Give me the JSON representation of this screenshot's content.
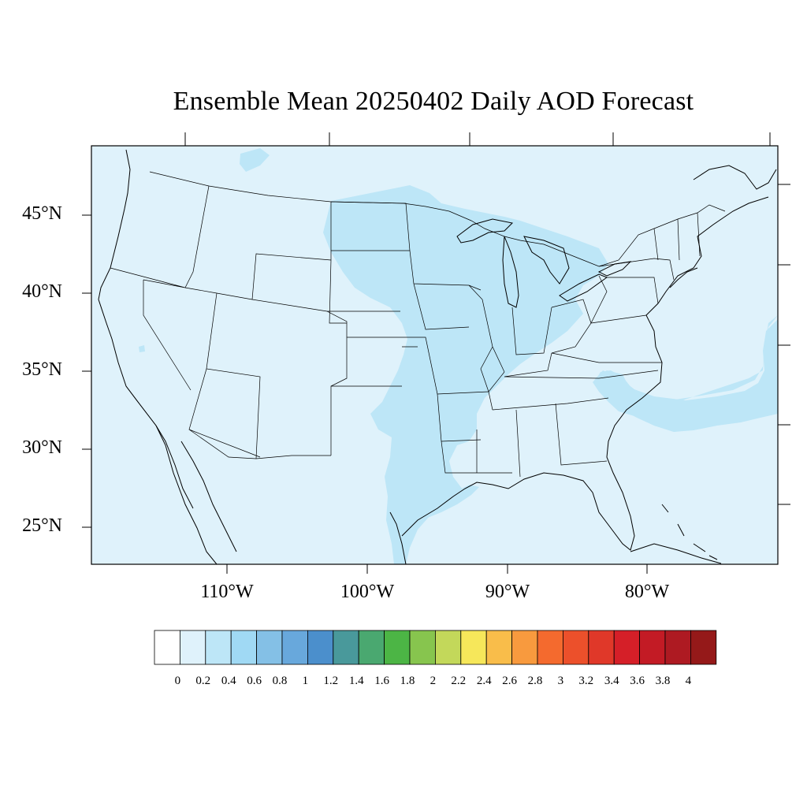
{
  "title": "Ensemble Mean 20250402 Daily AOD Forecast",
  "lat_labels": [
    "45°N",
    "40°N",
    "35°N",
    "30°N",
    "25°N"
  ],
  "lon_labels": [
    "110°W",
    "100°W",
    "90°W",
    "80°W"
  ],
  "colorbar": {
    "labels": [
      "0",
      "0.2",
      "0.4",
      "0.6",
      "0.8",
      "1",
      "1.2",
      "1.4",
      "1.6",
      "1.8",
      "2",
      "2.2",
      "2.4",
      "2.6",
      "2.8",
      "3",
      "3.2",
      "3.4",
      "3.6",
      "3.8",
      "4"
    ],
    "colors": [
      "#ffffff",
      "#dff2fb",
      "#bde6f7",
      "#a0d9f4",
      "#84c0e6",
      "#68a8dc",
      "#4b8fcc",
      "#49999b",
      "#4aa870",
      "#4cb545",
      "#87c54e",
      "#c3d85a",
      "#f6e75a",
      "#f9bd4a",
      "#f89a3e",
      "#f46a2e",
      "#ec502b",
      "#e03829",
      "#d51f28",
      "#c31b25",
      "#ae1a22",
      "#951919"
    ]
  },
  "chart_data": {
    "type": "heatmap",
    "title": "Ensemble Mean 20250402 Daily AOD Forecast",
    "variable": "AOD",
    "lon_range": [
      -119,
      -71
    ],
    "lat_range": [
      23,
      49
    ],
    "colorbar_levels": [
      0,
      0.2,
      0.4,
      0.6,
      0.8,
      1,
      1.2,
      1.4,
      1.6,
      1.8,
      2,
      2.2,
      2.4,
      2.6,
      2.8,
      3,
      3.2,
      3.4,
      3.6,
      3.8,
      4
    ],
    "background_value_range": [
      0.0,
      0.2
    ],
    "regions": [
      {
        "name": "Central Plains / Mississippi Valley band",
        "value_range": [
          0.2,
          0.4
        ]
      },
      {
        "name": "Upper Midwest / Great Lakes",
        "value_range": [
          0.2,
          0.4
        ]
      },
      {
        "name": "Ohio Valley",
        "value_range": [
          0.2,
          0.4
        ]
      },
      {
        "name": "Atlantic offshore plume",
        "value_range": [
          0.2,
          0.4
        ]
      }
    ]
  }
}
